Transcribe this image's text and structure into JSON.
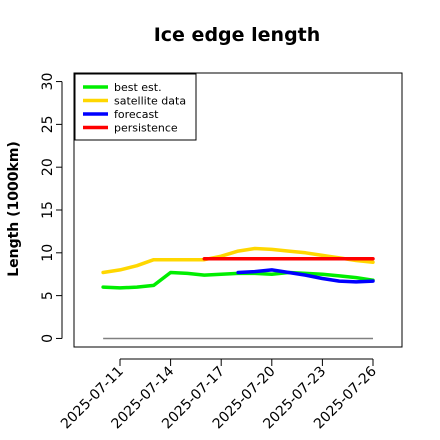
{
  "chart_data": {
    "type": "line",
    "title": "Ice edge length",
    "ylabel": "Length (1000km)",
    "xlabel": "",
    "ylim": [
      -1,
      31
    ],
    "yticks": [
      0,
      5,
      10,
      15,
      20,
      25,
      30
    ],
    "xticks": [
      {
        "label": "2025-07-11",
        "color": "#000000"
      },
      {
        "label": "2025-07-14",
        "color": "#000000"
      },
      {
        "label": "2025-07-17",
        "color": "#228B22"
      },
      {
        "label": "2025-07-20",
        "color": "#000000"
      },
      {
        "label": "2025-07-23",
        "color": "#000000"
      },
      {
        "label": "2025-07-26",
        "color": "#000000"
      }
    ],
    "grid": false,
    "legend_position": "top-left",
    "series": [
      {
        "name": "best est.",
        "color": "#00ee00",
        "x": [
          "2025-07-10",
          "2025-07-11",
          "2025-07-12",
          "2025-07-13",
          "2025-07-14",
          "2025-07-15",
          "2025-07-16",
          "2025-07-17",
          "2025-07-18",
          "2025-07-19",
          "2025-07-20",
          "2025-07-21",
          "2025-07-22",
          "2025-07-23",
          "2025-07-24",
          "2025-07-25",
          "2025-07-26"
        ],
        "y": [
          6.0,
          5.9,
          6.0,
          6.2,
          7.7,
          7.6,
          7.4,
          7.5,
          7.6,
          7.6,
          7.5,
          7.7,
          7.6,
          7.5,
          7.3,
          7.1,
          6.8
        ]
      },
      {
        "name": "satellite data",
        "color": "#ffd700",
        "x": [
          "2025-07-10",
          "2025-07-11",
          "2025-07-12",
          "2025-07-13",
          "2025-07-14",
          "2025-07-15",
          "2025-07-16",
          "2025-07-17",
          "2025-07-18",
          "2025-07-19",
          "2025-07-20",
          "2025-07-21",
          "2025-07-22",
          "2025-07-23",
          "2025-07-24",
          "2025-07-25",
          "2025-07-26"
        ],
        "y": [
          7.7,
          8.0,
          8.5,
          9.2,
          9.2,
          9.2,
          9.2,
          9.6,
          10.2,
          10.5,
          10.4,
          10.2,
          10.0,
          9.7,
          9.4,
          9.1,
          8.9
        ]
      },
      {
        "name": "forecast",
        "color": "#0000ff",
        "x": [
          "2025-07-18",
          "2025-07-19",
          "2025-07-20",
          "2025-07-21",
          "2025-07-22",
          "2025-07-23",
          "2025-07-24",
          "2025-07-25",
          "2025-07-26"
        ],
        "y": [
          7.7,
          7.8,
          8.0,
          7.7,
          7.4,
          7.0,
          6.7,
          6.6,
          6.7
        ]
      },
      {
        "name": "persistence",
        "color": "#ff0000",
        "x": [
          "2025-07-16",
          "2025-07-17",
          "2025-07-18",
          "2025-07-19",
          "2025-07-20",
          "2025-07-21",
          "2025-07-22",
          "2025-07-23",
          "2025-07-24",
          "2025-07-25",
          "2025-07-26"
        ],
        "y": [
          9.3,
          9.3,
          9.3,
          9.3,
          9.3,
          9.3,
          9.3,
          9.3,
          9.3,
          9.3,
          9.3
        ]
      }
    ],
    "reference_line": {
      "y": 0,
      "color": "#808080",
      "x_start": "2025-07-10",
      "x_end": "2025-07-26"
    }
  }
}
